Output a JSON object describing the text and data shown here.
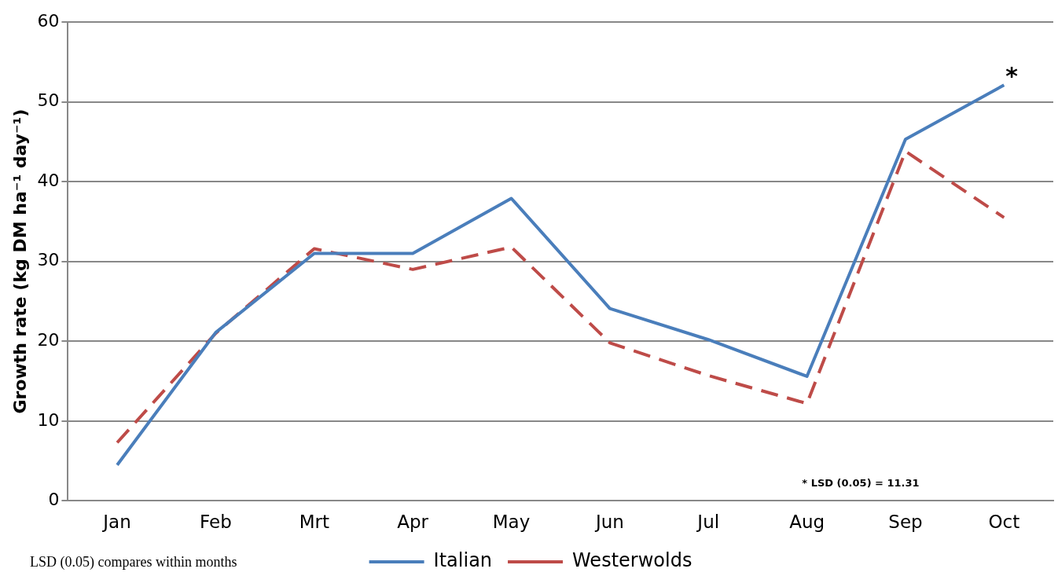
{
  "chart_data": {
    "type": "line",
    "ylabel": "Growth rate (kg DM ha⁻¹ day⁻¹)",
    "categories": [
      "Jan",
      "Feb",
      "Mrt",
      "Apr",
      "May",
      "Jun",
      "Jul",
      "Aug",
      "Sep",
      "Oct"
    ],
    "series": [
      {
        "name": "Italian",
        "color": "#4a7ebb",
        "line_style": "solid",
        "values": [
          4.5,
          21.1,
          31,
          31,
          37.9,
          24.1,
          20.2,
          15.6,
          45.3,
          52.1
        ]
      },
      {
        "name": "Westerwolds",
        "color": "#be4b48",
        "line_style": "dashed",
        "values": [
          7.3,
          21,
          31.6,
          29,
          31.8,
          19.8,
          15.7,
          12.2,
          43.8,
          35.5
        ]
      }
    ],
    "ylim": [
      0,
      60
    ],
    "yticks": [
      0,
      10,
      20,
      30,
      40,
      50,
      60
    ],
    "grid": "y",
    "legend": "bottom",
    "marker": "none",
    "annotations": [
      {
        "text": "*",
        "x": "Oct",
        "y": 52.1
      },
      "* LSD (0.05) = 11.31",
      "LSD (0.05) compares within months"
    ]
  }
}
